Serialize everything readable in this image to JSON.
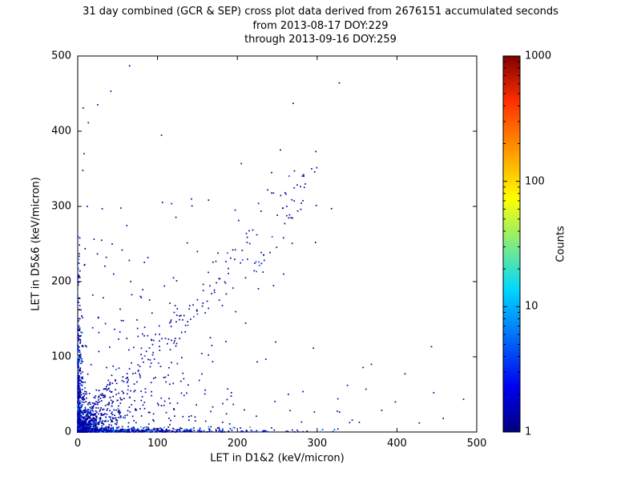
{
  "figure": {
    "title_lines": [
      "31 day combined (GCR & SEP) cross plot data derived from 2676151 accumulated seconds",
      "from 2013-08-17 DOY:229",
      "through 2013-09-16 DOY:259"
    ]
  },
  "chart_data": {
    "type": "scatter",
    "title": "31 day combined (GCR & SEP) cross plot data derived from 2676151 accumulated seconds from 2013-08-17 DOY:229 through 2013-09-16 DOY:259",
    "xlabel": "LET in D1&2 (keV/micron)",
    "ylabel": "LET in D5&6 (keV/micron)",
    "xlim": [
      0,
      500
    ],
    "ylim": [
      0,
      500
    ],
    "xticks": [
      0,
      100,
      200,
      300,
      400,
      500
    ],
    "yticks": [
      0,
      100,
      200,
      300,
      400,
      500
    ],
    "grid": false,
    "legend": "none",
    "colorbar": {
      "label": "Counts",
      "scale": "log",
      "min": 1,
      "max": 1000,
      "major_ticks": [
        1,
        10,
        100,
        1000
      ],
      "colormap": "jet",
      "gradient_stops": [
        [
          "#00007f",
          0
        ],
        [
          "#0000f0",
          12
        ],
        [
          "#00d8ff",
          38
        ],
        [
          "#ffff00",
          62
        ],
        [
          "#ff2f00",
          88
        ],
        [
          "#800000",
          100
        ]
      ]
    },
    "point_color_for_count_1": "#0000a0",
    "seed": 1337,
    "point_clusters": [
      {
        "name": "origin-core",
        "n": 1100,
        "kind": "xy",
        "x": {
          "type": "exp",
          "scale": 3,
          "max": 30
        },
        "y": {
          "type": "exp",
          "scale": 3,
          "max": 30
        },
        "colors": [
          [
            "#0000a0",
            38
          ],
          [
            "#0030e0",
            22
          ],
          [
            "#0070ff",
            14
          ],
          [
            "#00b4ff",
            12
          ],
          [
            "#00e4c8",
            8
          ],
          [
            "#34ff8c",
            4
          ],
          [
            "#a0ff28",
            1.5
          ],
          [
            "#ffc800",
            0.5
          ]
        ]
      },
      {
        "name": "origin-halo",
        "n": 520,
        "kind": "xy",
        "x": {
          "type": "exp",
          "scale": 14,
          "max": 100
        },
        "y": {
          "type": "exp",
          "scale": 14,
          "max": 100
        },
        "colors": [
          [
            "#0000a0",
            70
          ],
          [
            "#0030e0",
            20
          ],
          [
            "#00a0ff",
            10
          ]
        ]
      },
      {
        "name": "x-axis-band",
        "n": 650,
        "kind": "xy",
        "x": {
          "type": "exp",
          "scale": 70,
          "max": 330
        },
        "y": {
          "type": "exp",
          "scale": 2.2,
          "max": 7
        },
        "colors": [
          [
            "#0000a0",
            78
          ],
          [
            "#0038f0",
            15
          ],
          [
            "#00b0ff",
            7
          ]
        ]
      },
      {
        "name": "y-axis-band",
        "n": 380,
        "kind": "xy",
        "x": {
          "type": "exp",
          "scale": 2.2,
          "max": 7
        },
        "y": {
          "type": "exp",
          "scale": 60,
          "max": 330
        },
        "colors": [
          [
            "#0000a0",
            80
          ],
          [
            "#0038f0",
            14
          ],
          [
            "#00b0ff",
            6
          ]
        ]
      },
      {
        "name": "origin-fan",
        "n": 260,
        "kind": "fan",
        "x": {
          "type": "exp",
          "scale": 30,
          "max": 130
        },
        "slope": [
          0.3,
          1.8
        ],
        "colors": [
          [
            "#0000a0",
            85
          ],
          [
            "#0040ff",
            15
          ]
        ]
      },
      {
        "name": "diagonal-band",
        "n": 150,
        "kind": "diag",
        "x": {
          "type": "uniform",
          "min": 60,
          "max": 300
        },
        "slope": [
          0.95,
          1.3
        ],
        "jitter": 12,
        "colors": [
          [
            "#0000a0",
            90
          ],
          [
            "#0040ff",
            10
          ]
        ]
      },
      {
        "name": "sparse-field",
        "n": 300,
        "kind": "xy",
        "x": {
          "type": "exp",
          "scale": 110,
          "max": 500
        },
        "y": {
          "type": "exp",
          "scale": 90,
          "max": 500
        },
        "colors": [
          [
            "#0000a0",
            100
          ]
        ]
      }
    ],
    "outlier_points": [
      [
        65,
        487
      ],
      [
        270,
        437
      ],
      [
        205,
        357
      ],
      [
        238,
        322
      ],
      [
        318,
        297
      ],
      [
        150,
        240
      ],
      [
        243,
        345
      ],
      [
        262,
        300
      ],
      [
        88,
        232
      ],
      [
        120,
        205
      ],
      [
        57,
        148
      ],
      [
        298,
        252
      ],
      [
        198,
        160
      ],
      [
        168,
        115
      ],
      [
        258,
        210
      ],
      [
        338,
        62
      ],
      [
        398,
        40
      ],
      [
        458,
        18
      ],
      [
        428,
        12
      ],
      [
        368,
        90
      ],
      [
        25,
        435
      ],
      [
        8,
        370
      ],
      [
        12,
        300
      ],
      [
        30,
        255
      ],
      [
        45,
        210
      ]
    ]
  }
}
